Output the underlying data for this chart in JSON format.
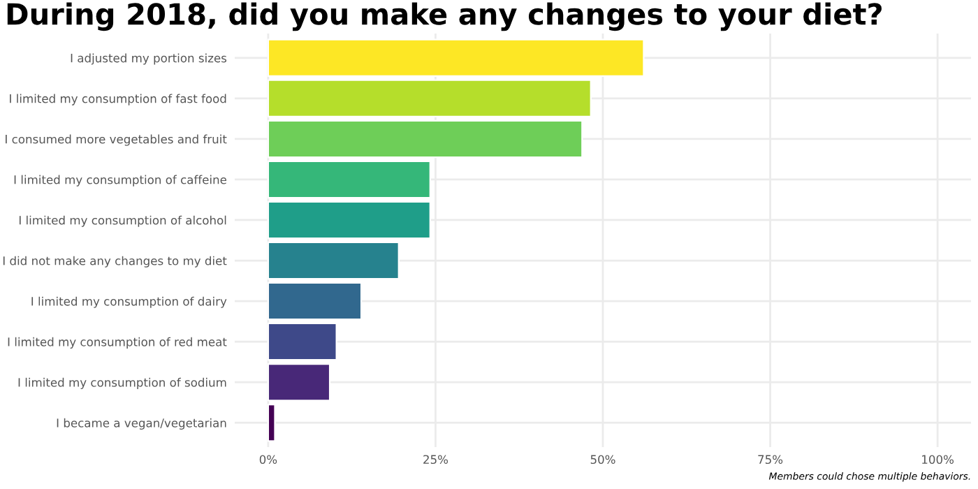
{
  "chart_data": {
    "type": "bar",
    "orientation": "horizontal",
    "title": "During 2018, did you make any changes to your diet?",
    "categories": [
      "I adjusted my portion sizes",
      "I limited my consumption of fast food",
      "I consumed more vegetables and fruit",
      "I limited my consumption of caffeine",
      "I limited my consumption of alcohol",
      "I did not make any changes to my diet",
      "I limited my consumption of dairy",
      "I limited my consumption of red meat",
      "I limited my consumption of sodium",
      "I became a vegan/vegetarian"
    ],
    "values": [
      56.1,
      48.2,
      46.9,
      24.2,
      24.2,
      19.5,
      13.9,
      10.2,
      9.2,
      1.0
    ],
    "colors": [
      "#fde725",
      "#b5de2b",
      "#6ece58",
      "#35b779",
      "#1f9e89",
      "#26828e",
      "#31688e",
      "#3e4989",
      "#482878",
      "#440154"
    ],
    "xlim": [
      -5,
      105
    ],
    "xticks": [
      {
        "value": 0,
        "label": "0%"
      },
      {
        "value": 25,
        "label": "25%"
      },
      {
        "value": 50,
        "label": "50%"
      },
      {
        "value": 75,
        "label": "75%"
      },
      {
        "value": 100,
        "label": "100%"
      }
    ],
    "grid": true,
    "legend": false,
    "annotations": [
      "Members could chose multiple behaviors."
    ]
  }
}
